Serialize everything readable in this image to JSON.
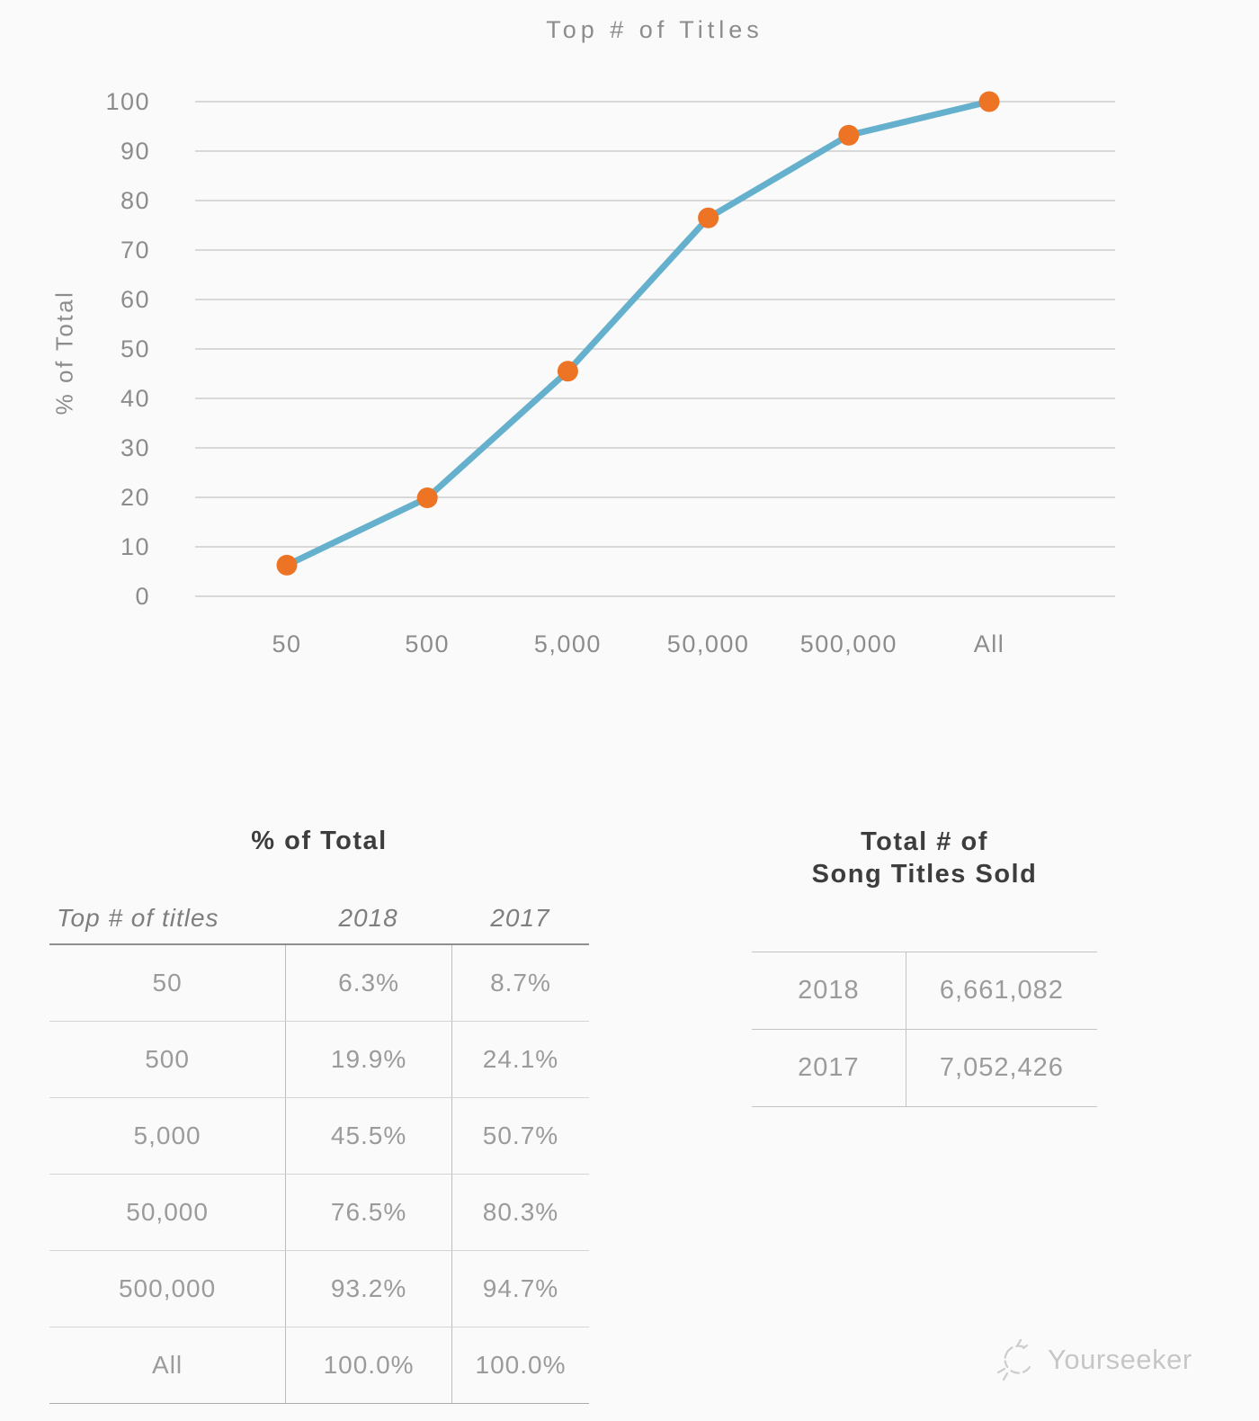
{
  "page": {
    "background": "#fafafa"
  },
  "chart": {
    "title": "Top # of Titles",
    "ylabel": "% of Total"
  },
  "chart_data": {
    "type": "line",
    "title": "Top # of Titles",
    "xlabel": "",
    "ylabel": "% of Total",
    "categories": [
      "50",
      "500",
      "5,000",
      "50,000",
      "500,000",
      "All"
    ],
    "series": [
      {
        "name": "2018",
        "values": [
          6.3,
          19.9,
          45.5,
          76.5,
          93.2,
          100.0
        ]
      }
    ],
    "ylim": [
      0,
      100
    ],
    "yticks": [
      0,
      10,
      20,
      30,
      40,
      50,
      60,
      70,
      80,
      90,
      100
    ],
    "grid": true,
    "legend_position": "none",
    "line_color": "#64b0cd",
    "marker_color": "#ec7424",
    "grid_color": "#cccccc"
  },
  "left_table": {
    "title": "% of Total",
    "headers": [
      "Top # of titles",
      "2018",
      "2017"
    ],
    "rows": [
      [
        "50",
        "6.3%",
        "8.7%"
      ],
      [
        "500",
        "19.9%",
        "24.1%"
      ],
      [
        "5,000",
        "45.5%",
        "50.7%"
      ],
      [
        "50,000",
        "76.5%",
        "80.3%"
      ],
      [
        "500,000",
        "93.2%",
        "94.7%"
      ],
      [
        "All",
        "100.0%",
        "100.0%"
      ]
    ]
  },
  "right_table": {
    "title_line1": "Total # of",
    "title_line2": "Song Titles Sold",
    "rows": [
      [
        "2018",
        "6,661,082"
      ],
      [
        "2017",
        "7,052,426"
      ]
    ]
  },
  "watermark": {
    "icon": "doodle-logo-icon",
    "label": "Yourseeker"
  }
}
